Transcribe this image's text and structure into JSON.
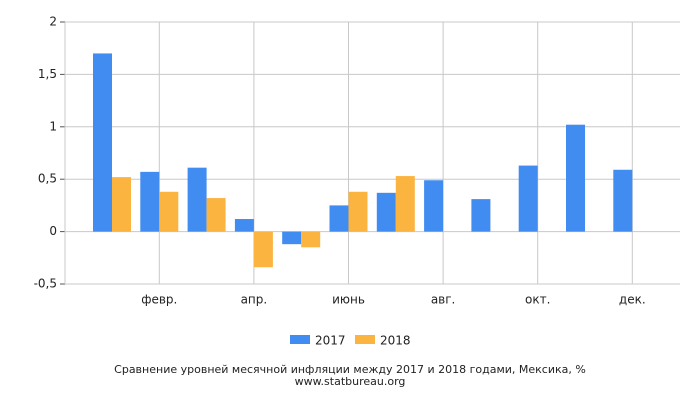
{
  "chart_data": {
    "type": "bar",
    "title": "Сравнение уровней месячной инфляции между 2017 и 2018 годами, Мексика, %",
    "source": "www.statbureau.org",
    "categories": [
      null,
      "февр.",
      null,
      "апр.",
      null,
      "июнь",
      null,
      "авг.",
      null,
      "окт.",
      null,
      "дек."
    ],
    "series": [
      {
        "name": "2017",
        "color": "#418cf0",
        "values": [
          1.7,
          0.57,
          0.61,
          0.12,
          -0.12,
          0.25,
          0.37,
          0.49,
          0.31,
          0.63,
          1.02,
          0.59
        ]
      },
      {
        "name": "2018",
        "color": "#fcb441",
        "values": [
          0.52,
          0.38,
          0.32,
          -0.34,
          -0.15,
          0.38,
          0.53,
          null,
          null,
          null,
          null,
          null
        ]
      }
    ],
    "ylim": [
      -0.5,
      2
    ],
    "yticks": [
      {
        "value": -0.5,
        "label": "-0,5"
      },
      0,
      {
        "value": 0.5,
        "label": "0,5"
      },
      1,
      {
        "value": 1.5,
        "label": "1,5"
      },
      2
    ],
    "grid": true,
    "legend": "bottom"
  }
}
